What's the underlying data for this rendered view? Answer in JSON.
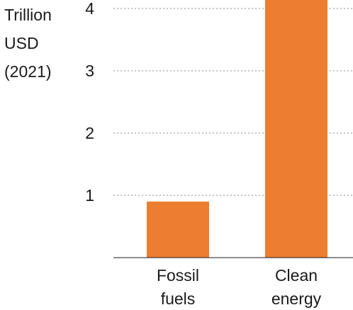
{
  "chart_data": {
    "type": "bar",
    "categories": [
      [
        "Fossil",
        "fuels"
      ],
      [
        "Clean",
        "energy"
      ]
    ],
    "values": [
      0.9,
      4.5
    ],
    "ylabel": [
      "Trillion",
      "USD",
      "(2021)"
    ],
    "yticks": [
      1,
      2,
      3,
      4
    ],
    "ylim": [
      0,
      4
    ],
    "grid": true,
    "bar_color": "#ed7d31"
  }
}
